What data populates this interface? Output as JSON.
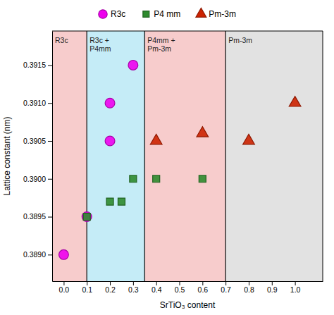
{
  "chart_data": {
    "type": "scatter",
    "xlabel": "SrTiO₃ content",
    "ylabel": "Lattice constant (nm)",
    "xlim": [
      -0.05,
      1.12
    ],
    "ylim": [
      0.38865,
      0.39195
    ],
    "xticks": [
      {
        "value": 0.0,
        "label": "0.0"
      },
      0.1,
      0.2,
      0.3,
      0.4,
      0.5,
      0.6,
      0.7,
      0.8,
      0.9,
      {
        "value": 1.0,
        "label": "1.0"
      }
    ],
    "yticks": [
      {
        "value": 0.389,
        "label": "0.3890"
      },
      {
        "value": 0.3895,
        "label": "0.3895"
      },
      {
        "value": 0.39,
        "label": "0.3900"
      },
      {
        "value": 0.3905,
        "label": "0.3905"
      },
      {
        "value": 0.391,
        "label": "0.3910"
      },
      {
        "value": 0.3915,
        "label": "0.3915"
      }
    ],
    "grid": false,
    "legend": "top",
    "series": [
      {
        "name": "R3c",
        "color": "#ee00ee",
        "marker": "circle",
        "x": [
          0.0,
          0.1,
          0.2,
          0.2,
          0.3
        ],
        "values": [
          0.389,
          0.3895,
          0.3905,
          0.391,
          0.3915
        ]
      },
      {
        "name": "P4 mm",
        "color": "#2e8b2e",
        "marker": "square",
        "x": [
          0.1,
          0.2,
          0.25,
          0.3,
          0.4,
          0.6
        ],
        "values": [
          0.3895,
          0.3897,
          0.3897,
          0.39,
          0.39,
          0.39
        ]
      },
      {
        "name": "Pm-3m",
        "color": "#cc2200",
        "marker": "triangle",
        "x": [
          0.4,
          0.6,
          0.8,
          1.0
        ],
        "values": [
          0.3905,
          0.3906,
          0.3905,
          0.391
        ]
      }
    ],
    "regions": [
      {
        "xmin": -0.05,
        "xmax": 0.1,
        "color": "#f7cccc",
        "label": "R3c"
      },
      {
        "xmin": 0.1,
        "xmax": 0.35,
        "color": "#c5ecf7",
        "label": "R3c +\nP4mm"
      },
      {
        "xmin": 0.35,
        "xmax": 0.7,
        "color": "#f7cccc",
        "label": "P4mm +\nPm-3m"
      },
      {
        "xmin": 0.7,
        "xmax": 1.12,
        "color": "#e2e2e2",
        "label": "Pm-3m"
      }
    ],
    "dividers": [
      0.1,
      0.35,
      0.7
    ]
  }
}
